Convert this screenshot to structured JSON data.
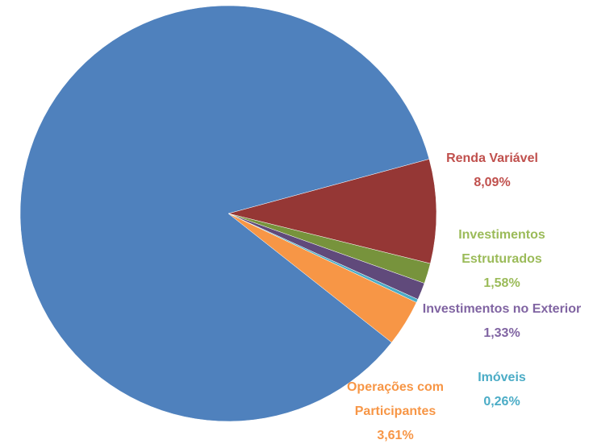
{
  "chart_data": {
    "type": "pie",
    "categories": [
      null,
      "Renda Variável",
      "Investimentos Estruturados",
      "Investimentos no Exterior",
      "Imóveis",
      "Operações com Participantes"
    ],
    "values": [
      85.13,
      8.09,
      1.58,
      1.33,
      0.26,
      3.61
    ],
    "value_labels": [
      null,
      "8,09%",
      "1,58%",
      "1,33%",
      "0,26%",
      "3,61%"
    ],
    "colors": [
      "#4f81bd",
      "#953735",
      "#77933c",
      "#604a7b",
      "#4bacc6",
      "#f79646"
    ],
    "label_colors": [
      null,
      "#c0504d",
      "#9bbb59",
      "#8064a2",
      "#4bacc6",
      "#f79646"
    ]
  }
}
